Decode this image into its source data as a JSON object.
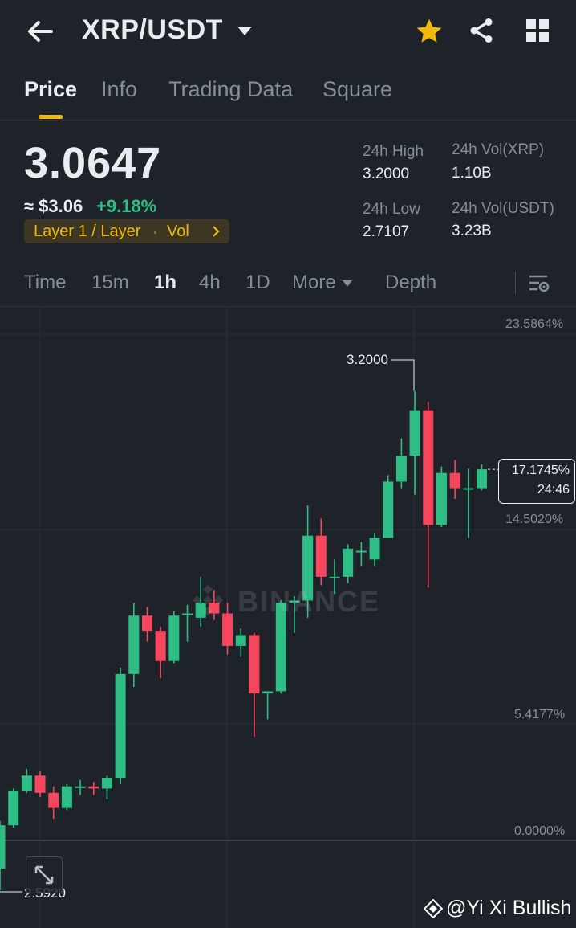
{
  "header": {
    "pair": "XRP/USDT",
    "back_icon": "arrow-left-icon",
    "favorite_icon": "star-icon",
    "share_icon": "share-icon",
    "menu_icon": "grid-icon",
    "favorite_color": "#f0b90b"
  },
  "tabs": [
    {
      "label": "Price",
      "active": true
    },
    {
      "label": "Info"
    },
    {
      "label": "Trading Data"
    },
    {
      "label": "Square"
    }
  ],
  "ticker": {
    "last_price": "3.0647",
    "approx_usd": "≈ $3.06",
    "change_pct": "+9.18%",
    "change_color": "#2ebd85",
    "tag": "Layer 1 / Layer",
    "tag_vol": "Vol",
    "high_label": "24h High",
    "high_value": "3.2000",
    "low_label": "24h Low",
    "low_value": "2.7107",
    "vol_base_label": "24h Vol(XRP)",
    "vol_base_value": "1.10B",
    "vol_quote_label": "24h Vol(USDT)",
    "vol_quote_value": "3.23B"
  },
  "intervals": [
    {
      "label": "Time"
    },
    {
      "label": "15m"
    },
    {
      "label": "1h",
      "active": true
    },
    {
      "label": "4h"
    },
    {
      "label": "1D"
    },
    {
      "label": "More"
    },
    {
      "label": "Depth"
    }
  ],
  "chart": {
    "pct_labels": [
      "23.5864%",
      "14.5020%",
      "5.4177%",
      "0.0000%"
    ],
    "high_marker": "3.2000",
    "low_marker": "2.5920",
    "live_pct": "17.1745%",
    "countdown": "24:46",
    "watermark": "BINANCE",
    "credit": "@Yi Xi Bullish",
    "up_color": "#2ebd85",
    "down_color": "#f6465d"
  },
  "chart_data": {
    "type": "candlestick",
    "y_axis": "percent change",
    "ylim": [
      -2.9,
      25.2
    ],
    "candles": [
      {
        "o": -1.3,
        "h": 0.9,
        "l": -2.3,
        "c": 0.7
      },
      {
        "o": 0.7,
        "h": 2.4,
        "l": 0.6,
        "c": 2.3
      },
      {
        "o": 2.3,
        "h": 3.3,
        "l": 2.2,
        "c": 3.0
      },
      {
        "o": 3.0,
        "h": 3.2,
        "l": 2.0,
        "c": 2.2
      },
      {
        "o": 2.2,
        "h": 2.5,
        "l": 1.0,
        "c": 1.5
      },
      {
        "o": 1.5,
        "h": 2.6,
        "l": 1.4,
        "c": 2.5
      },
      {
        "o": 2.5,
        "h": 2.8,
        "l": 2.1,
        "c": 2.5
      },
      {
        "o": 2.5,
        "h": 2.7,
        "l": 2.1,
        "c": 2.4
      },
      {
        "o": 2.4,
        "h": 3.0,
        "l": 1.9,
        "c": 2.9
      },
      {
        "o": 2.9,
        "h": 8.0,
        "l": 2.6,
        "c": 7.7
      },
      {
        "o": 7.7,
        "h": 11.0,
        "l": 7.1,
        "c": 10.4
      },
      {
        "o": 10.4,
        "h": 10.8,
        "l": 9.2,
        "c": 9.7
      },
      {
        "o": 9.7,
        "h": 9.9,
        "l": 7.5,
        "c": 8.3
      },
      {
        "o": 8.3,
        "h": 10.6,
        "l": 8.2,
        "c": 10.4
      },
      {
        "o": 10.5,
        "h": 10.9,
        "l": 9.2,
        "c": 10.5
      },
      {
        "o": 10.3,
        "h": 12.2,
        "l": 9.9,
        "c": 11.0
      },
      {
        "o": 11.0,
        "h": 11.6,
        "l": 10.2,
        "c": 10.5
      },
      {
        "o": 10.5,
        "h": 11.0,
        "l": 8.6,
        "c": 9.0
      },
      {
        "o": 9.0,
        "h": 9.8,
        "l": 8.5,
        "c": 9.5
      },
      {
        "o": 9.5,
        "h": 9.6,
        "l": 4.8,
        "c": 6.8
      },
      {
        "o": 6.8,
        "h": 6.9,
        "l": 5.6,
        "c": 6.9
      },
      {
        "o": 6.9,
        "h": 11.1,
        "l": 6.8,
        "c": 11.0
      },
      {
        "o": 11.0,
        "h": 11.3,
        "l": 9.6,
        "c": 11.1
      },
      {
        "o": 11.1,
        "h": 15.5,
        "l": 10.3,
        "c": 14.1
      },
      {
        "o": 14.1,
        "h": 14.9,
        "l": 11.8,
        "c": 12.2
      },
      {
        "o": 12.2,
        "h": 13.0,
        "l": 11.4,
        "c": 12.2
      },
      {
        "o": 12.2,
        "h": 13.7,
        "l": 11.9,
        "c": 13.5
      },
      {
        "o": 13.4,
        "h": 13.8,
        "l": 12.7,
        "c": 13.4
      },
      {
        "o": 13.0,
        "h": 14.2,
        "l": 12.7,
        "c": 14.0
      },
      {
        "o": 14.0,
        "h": 16.9,
        "l": 14.2,
        "c": 16.6
      },
      {
        "o": 16.6,
        "h": 18.6,
        "l": 16.3,
        "c": 17.8
      },
      {
        "o": 17.8,
        "h": 20.8,
        "l": 16.0,
        "c": 19.9
      },
      {
        "o": 19.9,
        "h": 20.3,
        "l": 11.7,
        "c": 14.6
      },
      {
        "o": 14.6,
        "h": 17.3,
        "l": 14.5,
        "c": 17.0
      },
      {
        "o": 17.0,
        "h": 17.6,
        "l": 15.8,
        "c": 16.3
      },
      {
        "o": 16.3,
        "h": 17.2,
        "l": 14.0,
        "c": 16.3
      },
      {
        "o": 16.3,
        "h": 17.4,
        "l": 16.2,
        "c": 17.17
      }
    ]
  }
}
